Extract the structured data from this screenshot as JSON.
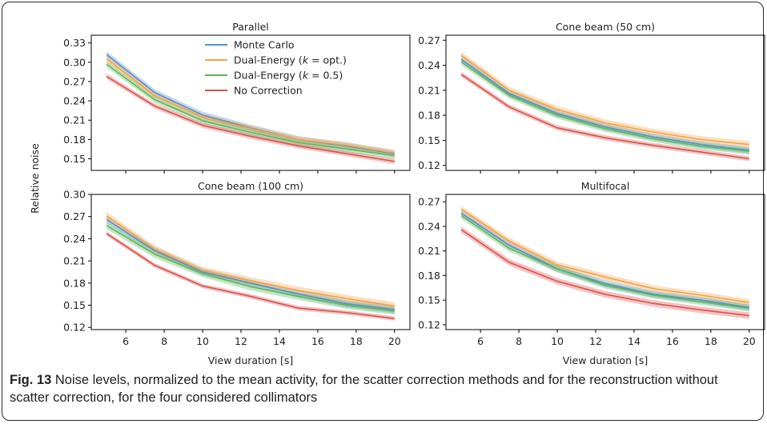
{
  "figure": {
    "caption_label": "Fig. 13",
    "caption_text": " Noise levels, normalized to the mean activity, for the scatter correction methods and for the reconstruction without scatter correction, for the four considered collimators",
    "ylabel": "Relative noise",
    "xlabel": "View duration [s]"
  },
  "legend": {
    "items": [
      {
        "label": "Monte Carlo",
        "color": "#5a8fc8"
      },
      {
        "label": "Dual-Energy (",
        "italic": "k",
        "suffix": " = opt.)",
        "color": "#f3a34a"
      },
      {
        "label": "Dual-Energy (",
        "italic": "k",
        "suffix": " = 0.5)",
        "color": "#5cb85c"
      },
      {
        "label": "No Correction",
        "color": "#d9534f"
      }
    ]
  },
  "chart_data": [
    {
      "type": "line",
      "title": "Parallel",
      "x": [
        5,
        7.5,
        10,
        12.5,
        15,
        17.5,
        20
      ],
      "xticks": [
        6,
        8,
        10,
        12,
        14,
        16,
        18,
        20
      ],
      "xlim": [
        4.2,
        20.8
      ],
      "yticks": [
        0.15,
        0.18,
        0.21,
        0.24,
        0.27,
        0.3,
        0.33
      ],
      "ylim": [
        0.132,
        0.342
      ],
      "series": [
        {
          "name": "Monte Carlo",
          "color": "#5a8fc8",
          "values": [
            0.312,
            0.253,
            0.218,
            0.198,
            0.18,
            0.17,
            0.158
          ],
          "band": 0.005
        },
        {
          "name": "Dual-Energy (k = opt.)",
          "color": "#f3a34a",
          "values": [
            0.305,
            0.248,
            0.215,
            0.197,
            0.18,
            0.171,
            0.159
          ],
          "band": 0.005
        },
        {
          "name": "Dual-Energy (k = 0.5)",
          "color": "#5cb85c",
          "values": [
            0.297,
            0.242,
            0.209,
            0.191,
            0.175,
            0.165,
            0.155
          ],
          "band": 0.005
        },
        {
          "name": "No Correction",
          "color": "#d9534f",
          "values": [
            0.278,
            0.232,
            0.202,
            0.185,
            0.17,
            0.158,
            0.146
          ],
          "band": 0.004
        }
      ]
    },
    {
      "type": "line",
      "title": "Cone beam (50 cm)",
      "x": [
        5,
        7.5,
        10,
        12.5,
        15,
        17.5,
        20
      ],
      "xticks": [
        6,
        8,
        10,
        12,
        14,
        16,
        18,
        20
      ],
      "xlim": [
        4.2,
        20.8
      ],
      "yticks": [
        0.12,
        0.15,
        0.18,
        0.21,
        0.24,
        0.27
      ],
      "ylim": [
        0.114,
        0.276
      ],
      "series": [
        {
          "name": "Monte Carlo",
          "color": "#5a8fc8",
          "values": [
            0.247,
            0.206,
            0.182,
            0.166,
            0.154,
            0.145,
            0.138
          ],
          "band": 0.004
        },
        {
          "name": "Dual-Energy (k = opt.)",
          "color": "#f3a34a",
          "values": [
            0.252,
            0.21,
            0.187,
            0.171,
            0.16,
            0.151,
            0.145
          ],
          "band": 0.004
        },
        {
          "name": "Dual-Energy (k = 0.5)",
          "color": "#5cb85c",
          "values": [
            0.244,
            0.204,
            0.18,
            0.164,
            0.152,
            0.143,
            0.137
          ],
          "band": 0.004
        },
        {
          "name": "No Correction",
          "color": "#d9534f",
          "values": [
            0.229,
            0.19,
            0.165,
            0.153,
            0.144,
            0.136,
            0.128
          ],
          "band": 0.003
        }
      ]
    },
    {
      "type": "line",
      "title": "Cone beam (100 cm)",
      "x": [
        5,
        7.5,
        10,
        12.5,
        15,
        17.5,
        20
      ],
      "xticks": [
        6,
        8,
        10,
        12,
        14,
        16,
        18,
        20
      ],
      "xlim": [
        4.2,
        20.8
      ],
      "yticks": [
        0.12,
        0.15,
        0.18,
        0.21,
        0.24,
        0.27,
        0.3
      ],
      "ylim": [
        0.117,
        0.3
      ],
      "series": [
        {
          "name": "Monte Carlo",
          "color": "#5a8fc8",
          "values": [
            0.266,
            0.224,
            0.195,
            0.18,
            0.165,
            0.152,
            0.144
          ],
          "band": 0.005
        },
        {
          "name": "Dual-Energy (k = opt.)",
          "color": "#f3a34a",
          "values": [
            0.271,
            0.226,
            0.197,
            0.183,
            0.17,
            0.159,
            0.149
          ],
          "band": 0.005
        },
        {
          "name": "Dual-Energy (k = 0.5)",
          "color": "#5cb85c",
          "values": [
            0.258,
            0.219,
            0.193,
            0.175,
            0.162,
            0.15,
            0.142
          ],
          "band": 0.005
        },
        {
          "name": "No Correction",
          "color": "#d9534f",
          "values": [
            0.247,
            0.204,
            0.176,
            0.162,
            0.146,
            0.14,
            0.132
          ],
          "band": 0.003
        }
      ]
    },
    {
      "type": "line",
      "title": "Multifocal",
      "x": [
        5,
        7.5,
        10,
        12.5,
        15,
        17.5,
        20
      ],
      "xticks": [
        6,
        8,
        10,
        12,
        14,
        16,
        18,
        20
      ],
      "xlim": [
        4.2,
        20.8
      ],
      "yticks": [
        0.12,
        0.15,
        0.18,
        0.21,
        0.24,
        0.27
      ],
      "ylim": [
        0.114,
        0.279
      ],
      "series": [
        {
          "name": "Monte Carlo",
          "color": "#5a8fc8",
          "values": [
            0.256,
            0.217,
            0.188,
            0.17,
            0.157,
            0.15,
            0.141
          ],
          "band": 0.004
        },
        {
          "name": "Dual-Energy (k = opt.)",
          "color": "#f3a34a",
          "values": [
            0.261,
            0.222,
            0.193,
            0.178,
            0.164,
            0.156,
            0.147
          ],
          "band": 0.004
        },
        {
          "name": "Dual-Energy (k = 0.5)",
          "color": "#5cb85c",
          "values": [
            0.253,
            0.213,
            0.188,
            0.168,
            0.156,
            0.148,
            0.14
          ],
          "band": 0.004
        },
        {
          "name": "No Correction",
          "color": "#d9534f",
          "values": [
            0.236,
            0.196,
            0.173,
            0.157,
            0.146,
            0.138,
            0.131
          ],
          "band": 0.004
        }
      ]
    }
  ]
}
